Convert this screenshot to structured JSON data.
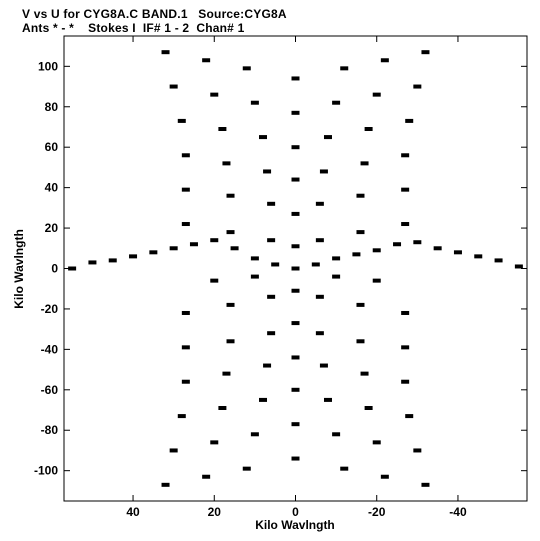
{
  "chart_data": {
    "type": "scatter",
    "title_line_1": "V vs U for CYG8A.C BAND.1   Source:CYG8A",
    "title_line_2": "Ants * - *    Stokes I  IF# 1 - 2  Chan# 1",
    "xlabel": "Kilo Wavlngth",
    "ylabel": "Kilo Wavlngth",
    "xlim": [
      57,
      -57
    ],
    "ylim": [
      -115,
      115
    ],
    "x_reversed": true,
    "x_ticks": [
      40,
      20,
      0,
      -20,
      -40
    ],
    "y_ticks": [
      100,
      80,
      60,
      40,
      20,
      0,
      -20,
      -40,
      -60,
      -80,
      -100
    ],
    "grid": false,
    "series": [
      {
        "values": [
          {
            "x": 32,
            "y": 107
          },
          {
            "x": 22,
            "y": 103
          },
          {
            "x": 12,
            "y": 99
          },
          {
            "x": 0,
            "y": 94
          },
          {
            "x": -12,
            "y": 99
          },
          {
            "x": -22,
            "y": 103
          },
          {
            "x": -32,
            "y": 107
          },
          {
            "x": 30,
            "y": 90
          },
          {
            "x": 20,
            "y": 86
          },
          {
            "x": 10,
            "y": 82
          },
          {
            "x": 0,
            "y": 77
          },
          {
            "x": -10,
            "y": 82
          },
          {
            "x": -20,
            "y": 86
          },
          {
            "x": -30,
            "y": 90
          },
          {
            "x": 28,
            "y": 73
          },
          {
            "x": 18,
            "y": 69
          },
          {
            "x": 8,
            "y": 65
          },
          {
            "x": 0,
            "y": 60
          },
          {
            "x": -8,
            "y": 65
          },
          {
            "x": -18,
            "y": 69
          },
          {
            "x": -28,
            "y": 73
          },
          {
            "x": 27,
            "y": 56
          },
          {
            "x": 17,
            "y": 52
          },
          {
            "x": 7,
            "y": 48
          },
          {
            "x": 0,
            "y": 44
          },
          {
            "x": -7,
            "y": 48
          },
          {
            "x": -17,
            "y": 52
          },
          {
            "x": -27,
            "y": 56
          },
          {
            "x": 27,
            "y": 39
          },
          {
            "x": 16,
            "y": 36
          },
          {
            "x": 6,
            "y": 32
          },
          {
            "x": 0,
            "y": 27
          },
          {
            "x": -6,
            "y": 32
          },
          {
            "x": -16,
            "y": 36
          },
          {
            "x": -27,
            "y": 39
          },
          {
            "x": 27,
            "y": 22
          },
          {
            "x": 16,
            "y": 18
          },
          {
            "x": 6,
            "y": 14
          },
          {
            "x": 0,
            "y": 11
          },
          {
            "x": -6,
            "y": 14
          },
          {
            "x": -16,
            "y": 18
          },
          {
            "x": -27,
            "y": 22
          },
          {
            "x": 55,
            "y": 0
          },
          {
            "x": 50,
            "y": 3
          },
          {
            "x": 45,
            "y": 4
          },
          {
            "x": 40,
            "y": 6
          },
          {
            "x": 35,
            "y": 8
          },
          {
            "x": 30,
            "y": 10
          },
          {
            "x": 25,
            "y": 12
          },
          {
            "x": 20,
            "y": 14
          },
          {
            "x": 15,
            "y": 10
          },
          {
            "x": 10,
            "y": 5
          },
          {
            "x": 5,
            "y": 2
          },
          {
            "x": 0,
            "y": 0
          },
          {
            "x": -5,
            "y": 2
          },
          {
            "x": -10,
            "y": 5
          },
          {
            "x": -15,
            "y": 7
          },
          {
            "x": -20,
            "y": 9
          },
          {
            "x": -25,
            "y": 12
          },
          {
            "x": -30,
            "y": 13
          },
          {
            "x": -35,
            "y": 10
          },
          {
            "x": -40,
            "y": 8
          },
          {
            "x": -45,
            "y": 6
          },
          {
            "x": -50,
            "y": 4
          },
          {
            "x": -55,
            "y": 1
          },
          {
            "x": 20,
            "y": -6
          },
          {
            "x": 10,
            "y": -4
          },
          {
            "x": -10,
            "y": -4
          },
          {
            "x": -20,
            "y": -6
          },
          {
            "x": 27,
            "y": -22
          },
          {
            "x": 16,
            "y": -18
          },
          {
            "x": 6,
            "y": -14
          },
          {
            "x": 0,
            "y": -11
          },
          {
            "x": -6,
            "y": -14
          },
          {
            "x": -16,
            "y": -18
          },
          {
            "x": -27,
            "y": -22
          },
          {
            "x": 27,
            "y": -39
          },
          {
            "x": 16,
            "y": -36
          },
          {
            "x": 6,
            "y": -32
          },
          {
            "x": 0,
            "y": -27
          },
          {
            "x": -6,
            "y": -32
          },
          {
            "x": -16,
            "y": -36
          },
          {
            "x": -27,
            "y": -39
          },
          {
            "x": 27,
            "y": -56
          },
          {
            "x": 17,
            "y": -52
          },
          {
            "x": 7,
            "y": -48
          },
          {
            "x": 0,
            "y": -44
          },
          {
            "x": -7,
            "y": -48
          },
          {
            "x": -17,
            "y": -52
          },
          {
            "x": -27,
            "y": -56
          },
          {
            "x": 28,
            "y": -73
          },
          {
            "x": 18,
            "y": -69
          },
          {
            "x": 8,
            "y": -65
          },
          {
            "x": 0,
            "y": -60
          },
          {
            "x": -8,
            "y": -65
          },
          {
            "x": -18,
            "y": -69
          },
          {
            "x": -28,
            "y": -73
          },
          {
            "x": 30,
            "y": -90
          },
          {
            "x": 20,
            "y": -86
          },
          {
            "x": 10,
            "y": -82
          },
          {
            "x": 0,
            "y": -77
          },
          {
            "x": -10,
            "y": -82
          },
          {
            "x": -20,
            "y": -86
          },
          {
            "x": -30,
            "y": -90
          },
          {
            "x": 32,
            "y": -107
          },
          {
            "x": 22,
            "y": -103
          },
          {
            "x": 12,
            "y": -99
          },
          {
            "x": 0,
            "y": -94
          },
          {
            "x": -12,
            "y": -99
          },
          {
            "x": -22,
            "y": -103
          },
          {
            "x": -32,
            "y": -107
          }
        ]
      }
    ],
    "point_color": "#000000",
    "axis_color": "#000000",
    "background": "#ffffff"
  }
}
